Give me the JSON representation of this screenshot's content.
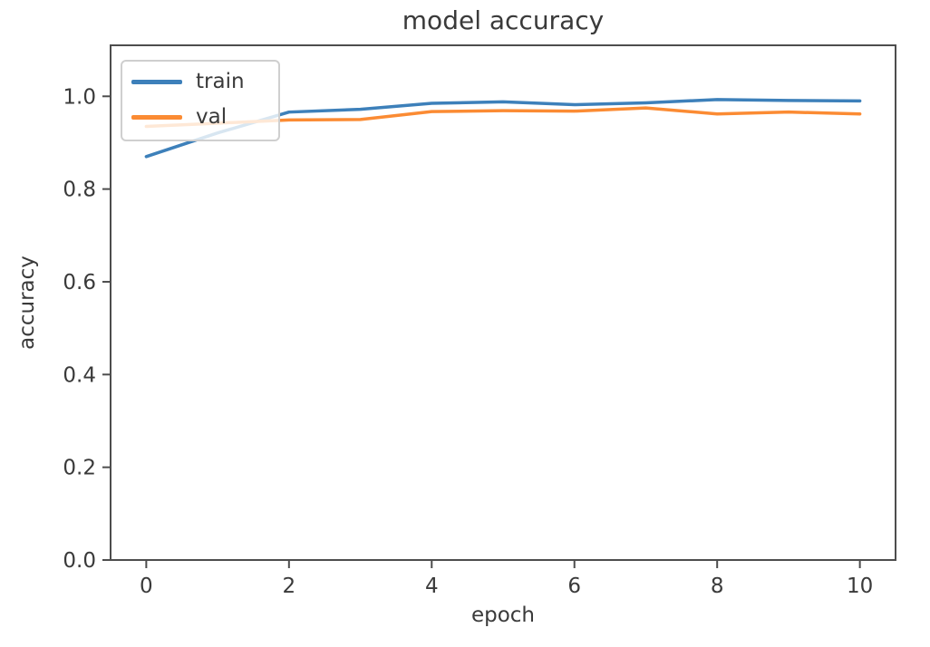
{
  "chart_data": {
    "type": "line",
    "title": "model accuracy",
    "xlabel": "epoch",
    "ylabel": "accuracy",
    "x": [
      0,
      1,
      2,
      3,
      4,
      5,
      6,
      7,
      8,
      9,
      10
    ],
    "series": [
      {
        "name": "train",
        "color": "#3d80ba",
        "values": [
          0.87,
          0.921,
          0.966,
          0.972,
          0.985,
          0.988,
          0.982,
          0.986,
          0.993,
          0.991,
          0.99
        ]
      },
      {
        "name": "val",
        "color": "#fb8b33",
        "values": [
          0.935,
          0.942,
          0.949,
          0.95,
          0.967,
          0.969,
          0.968,
          0.975,
          0.962,
          0.966,
          0.962
        ]
      }
    ],
    "xlim": [
      -0.5,
      10.5
    ],
    "ylim": [
      0,
      1.11
    ],
    "xticks": [
      0,
      2,
      4,
      6,
      8,
      10
    ],
    "xtick_labels": [
      "0",
      "2",
      "4",
      "6",
      "8",
      "10"
    ],
    "yticks": [
      0,
      0.2,
      0.4,
      0.6,
      0.8,
      1.0
    ],
    "ytick_labels": [
      "0.0",
      "0.2",
      "0.4",
      "0.6",
      "0.8",
      "1.0"
    ],
    "grid": false,
    "legend": {
      "position": "upper-left",
      "items": [
        "train",
        "val"
      ]
    },
    "axis_color": "#4d4d4d",
    "text_color": "#3a3a3a"
  }
}
